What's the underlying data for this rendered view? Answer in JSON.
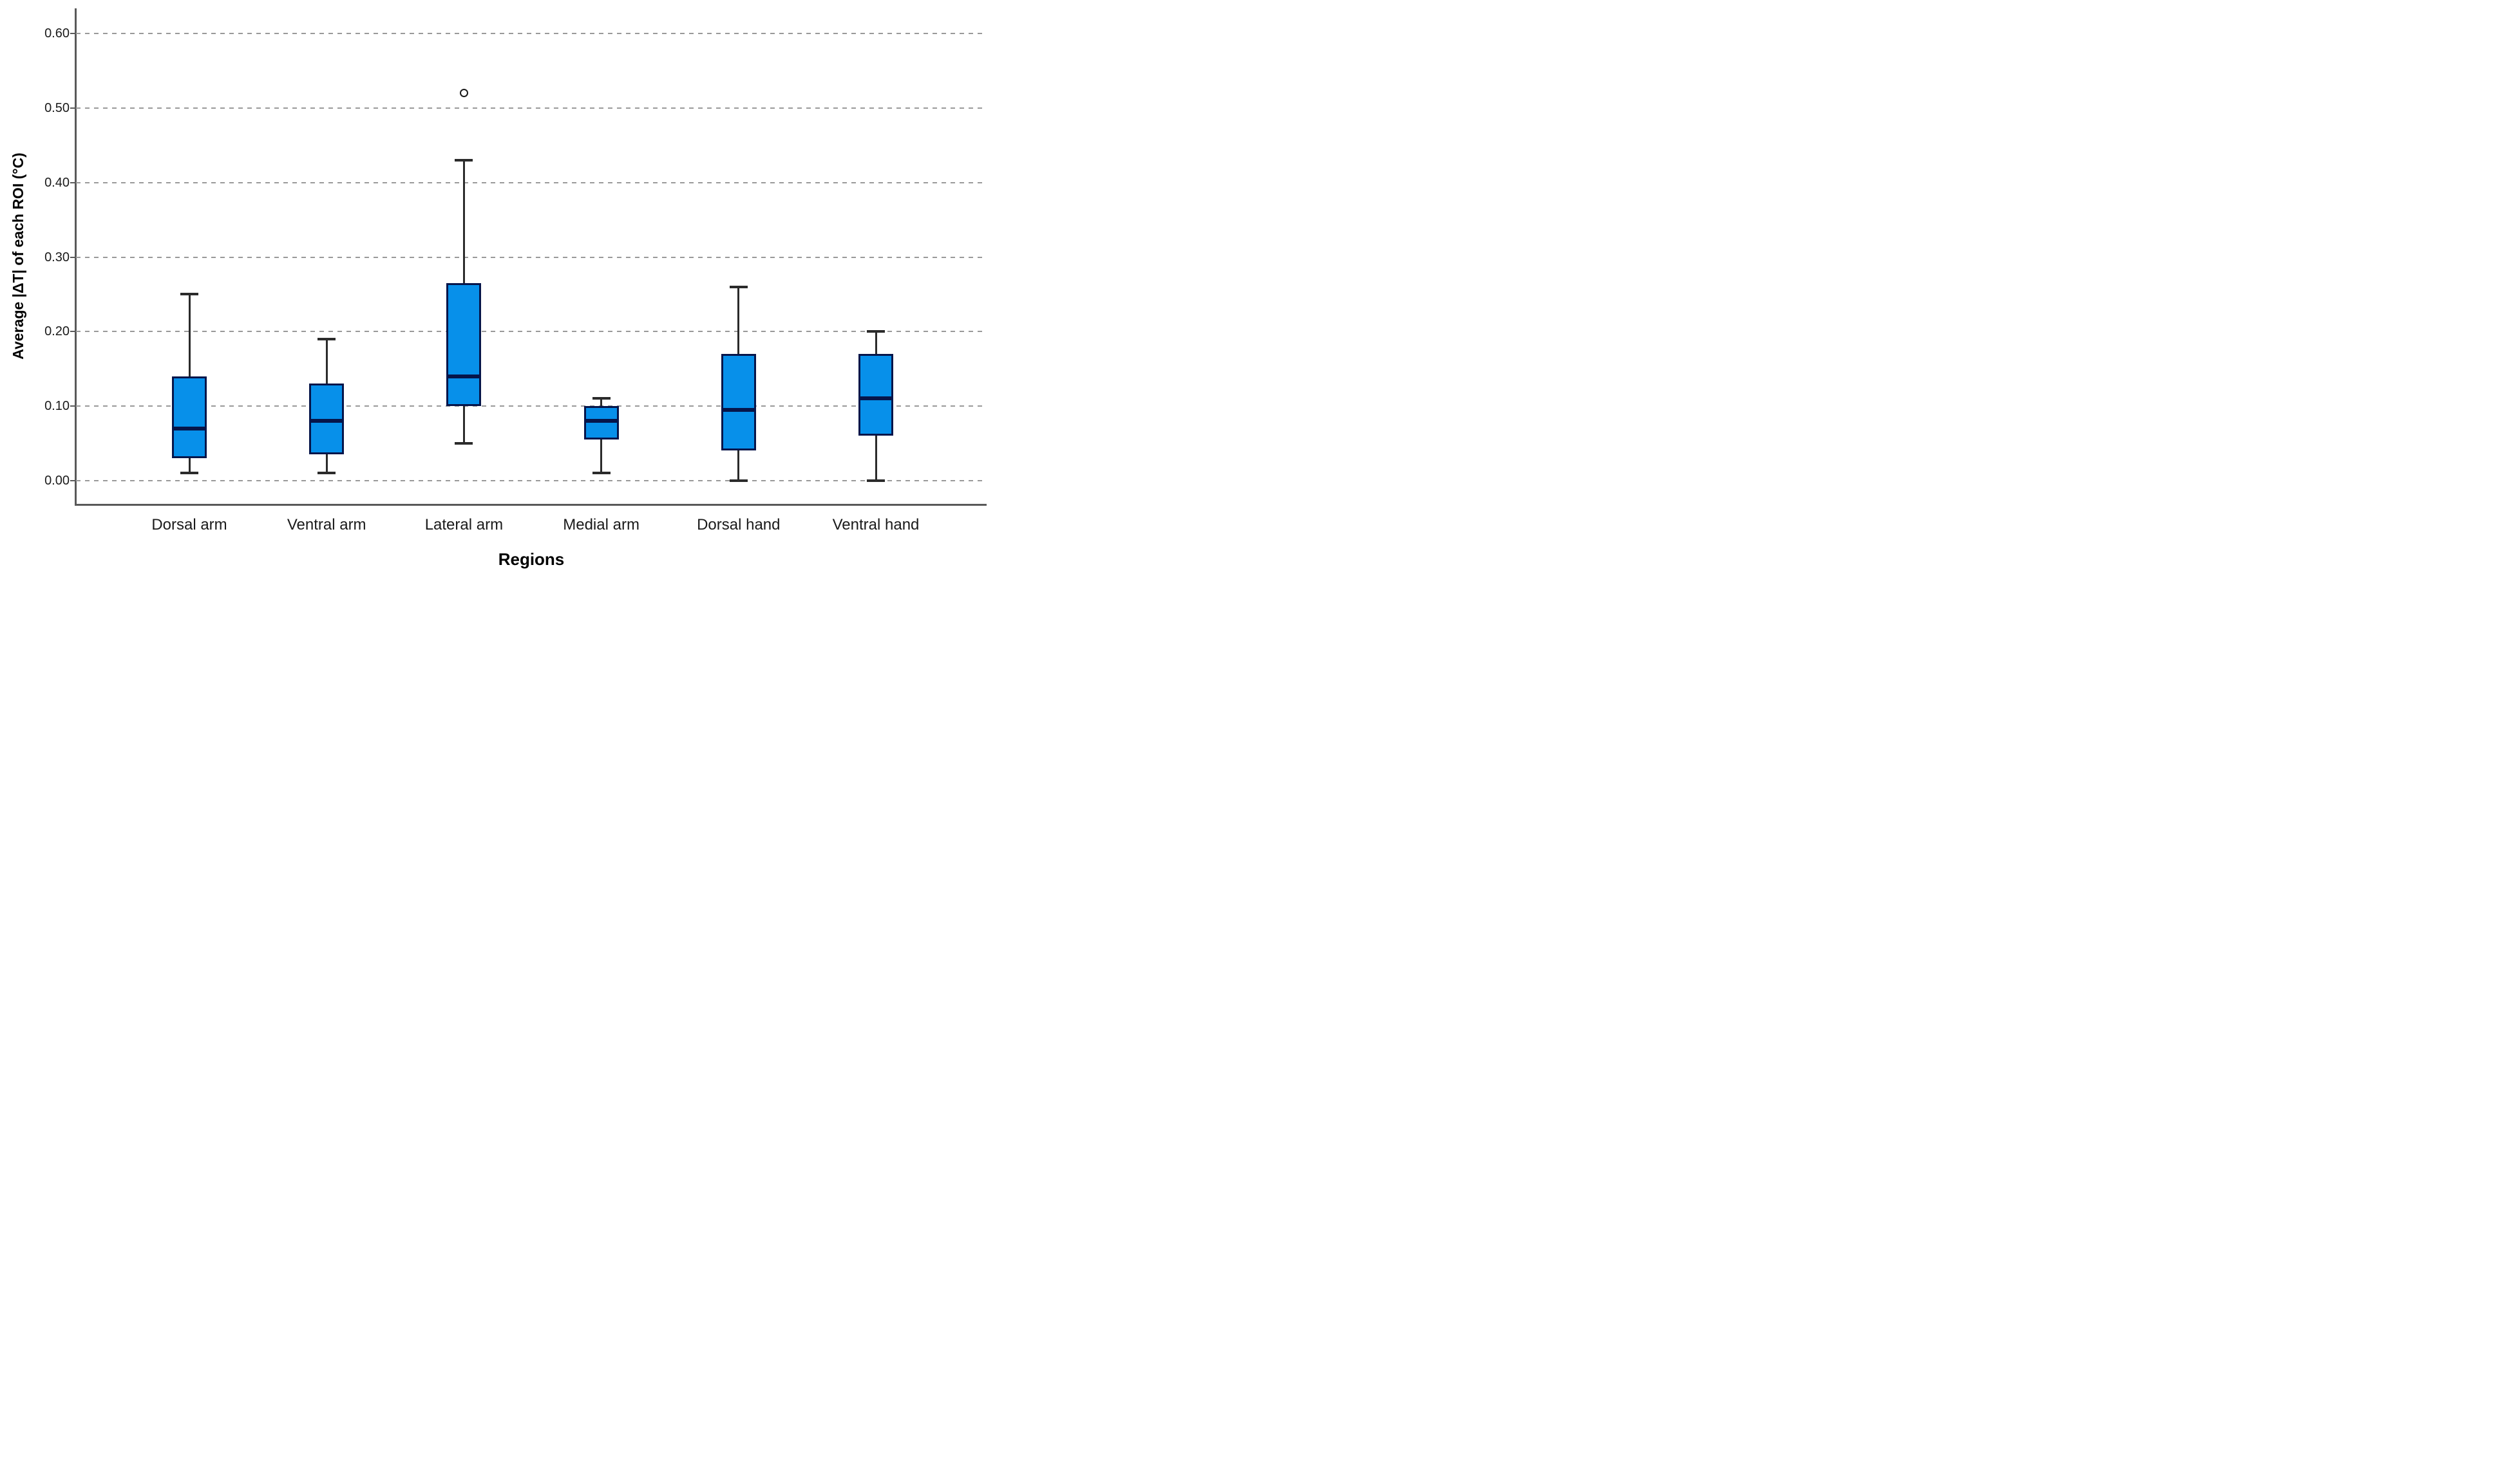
{
  "chart_data": {
    "type": "boxplot",
    "title": "",
    "xlabel": "Regions",
    "ylabel": "Average |ΔT| of each ROI (°C)",
    "ylim": [
      0.0,
      0.63
    ],
    "grid": "horizontal-dashed",
    "legend": "none",
    "yticks": [
      {
        "value": 0.0,
        "label": "0.00"
      },
      {
        "value": 0.1,
        "label": "0.10"
      },
      {
        "value": 0.2,
        "label": "0.20"
      },
      {
        "value": 0.3,
        "label": "0.30"
      },
      {
        "value": 0.4,
        "label": "0.40"
      },
      {
        "value": 0.5,
        "label": "0.50"
      },
      {
        "value": 0.6,
        "label": "0.60"
      }
    ],
    "categories": [
      "Dorsal arm",
      "Ventral arm",
      "Lateral arm",
      "Medial arm",
      "Dorsal hand",
      "Ventral hand"
    ],
    "boxes": [
      {
        "category": "Dorsal arm",
        "whisker_low": 0.01,
        "q1": 0.03,
        "median": 0.07,
        "q3": 0.14,
        "whisker_high": 0.25,
        "outliers": []
      },
      {
        "category": "Ventral arm",
        "whisker_low": 0.01,
        "q1": 0.035,
        "median": 0.08,
        "q3": 0.13,
        "whisker_high": 0.19,
        "outliers": []
      },
      {
        "category": "Lateral arm",
        "whisker_low": 0.05,
        "q1": 0.1,
        "median": 0.14,
        "q3": 0.265,
        "whisker_high": 0.43,
        "outliers": [
          0.52
        ]
      },
      {
        "category": "Medial arm",
        "whisker_low": 0.01,
        "q1": 0.055,
        "median": 0.08,
        "q3": 0.1,
        "whisker_high": 0.11,
        "outliers": []
      },
      {
        "category": "Dorsal hand",
        "whisker_low": 0.0,
        "q1": 0.04,
        "median": 0.095,
        "q3": 0.17,
        "whisker_high": 0.26,
        "outliers": []
      },
      {
        "category": "Ventral hand",
        "whisker_low": 0.0,
        "q1": 0.06,
        "median": 0.11,
        "q3": 0.17,
        "whisker_high": 0.2,
        "outliers": []
      }
    ],
    "colors": {
      "box_fill": "#0790EA",
      "box_border": "#06154A",
      "median": "#06154A",
      "whisker": "#2B2B2B",
      "outlier_stroke": "#1A1A1A",
      "gridline": "#999999",
      "axis": "#595959",
      "text": "#1A1A1A",
      "background": "#FFFFFF"
    }
  }
}
